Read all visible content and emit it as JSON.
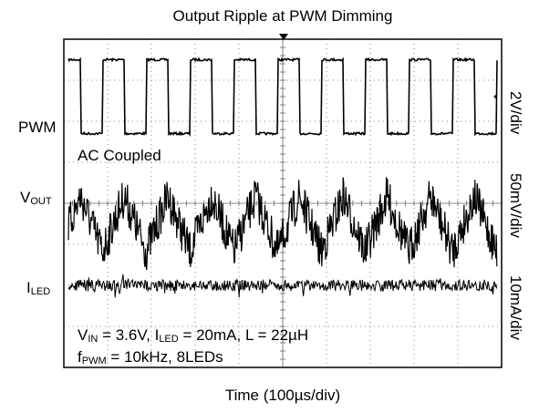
{
  "chart_data": {
    "type": "line",
    "title": "Output Ripple at PWM Dimming",
    "xlabel": "Time (100µs/div)",
    "x_divisions": 10,
    "y_divisions": 8,
    "annotation": "AC Coupled",
    "conditions": {
      "line1": {
        "v_main": "V",
        "v_sub": "IN",
        "v_text": " = 3.6V, I",
        "i_sub": "LED",
        "rest": " = 20mA, L = 22µH"
      },
      "line2": {
        "f_main": "f",
        "f_sub": "PWM",
        "rest": " = 10kHz, 8LEDs"
      }
    },
    "series": [
      {
        "name": "PWM",
        "label_main": "PWM",
        "label_sub": "",
        "scale": "2V/div",
        "shape": "square",
        "frequency_khz": 10,
        "duty_cycle": 0.5,
        "level_high_div": 3.5,
        "level_low_div": 1.7
      },
      {
        "name": "VOUT",
        "label_main": "V",
        "label_sub": "OUT",
        "scale": "50mV/div",
        "shape": "triangle",
        "frequency_khz": 10,
        "center_div": -0.5,
        "peak_to_peak_div": 1.35,
        "noise_div": 0.5
      },
      {
        "name": "ILED",
        "label_main": "I",
        "label_sub": "LED",
        "scale": "10mA/div",
        "shape": "flat",
        "center_div": -2.0,
        "noise_div": 0.14
      }
    ]
  }
}
